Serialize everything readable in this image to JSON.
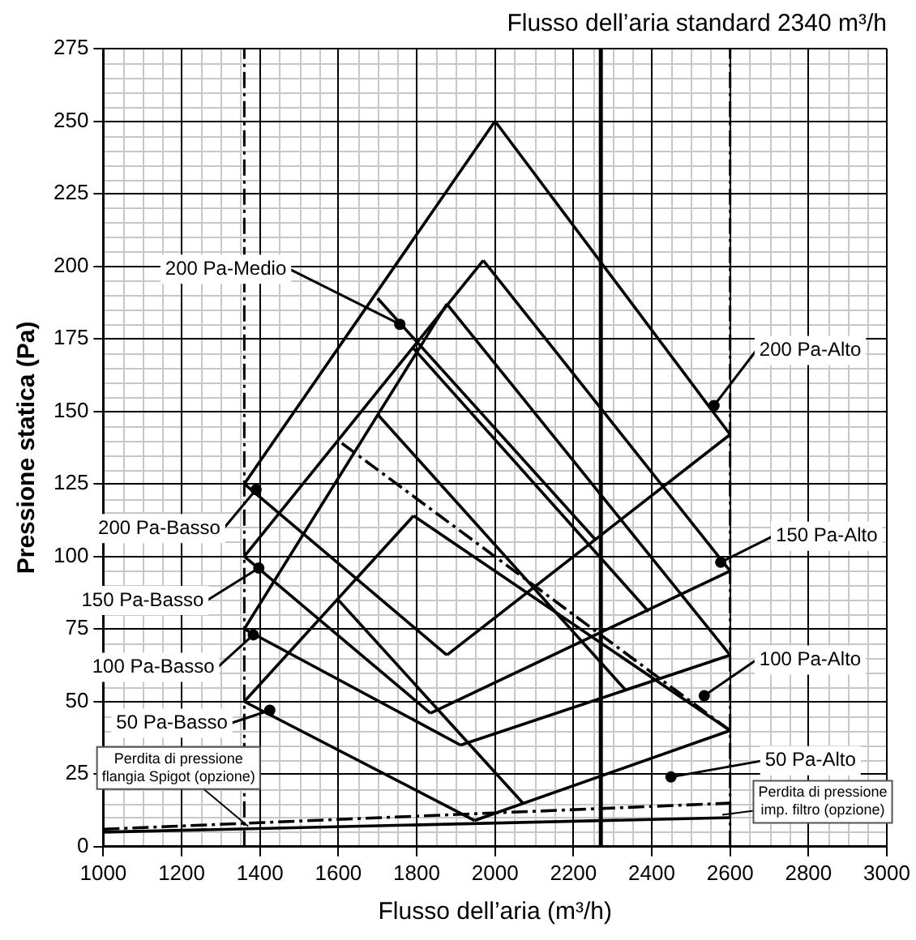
{
  "chart_data": {
    "type": "line",
    "title": "Flusso dell’aria standard 2340 m³/h",
    "xlabel": "Flusso dell’aria (m³/h)",
    "ylabel": "Pressione statica (Pa)",
    "xlim": [
      1000,
      3000
    ],
    "xticks": [
      1000,
      1200,
      1400,
      1600,
      1800,
      2000,
      2200,
      2400,
      2600,
      2800,
      3000
    ],
    "ylim": [
      0,
      275
    ],
    "yticks": [
      0,
      25,
      50,
      75,
      100,
      125,
      150,
      175,
      200,
      225,
      250,
      275
    ],
    "grid": true,
    "legend": false,
    "marker": "none",
    "series": [
      {
        "color": "#000000",
        "x": [
          1360,
          2000
        ],
        "values": [
          125,
          250
        ]
      },
      {
        "color": "#000000",
        "x": [
          2000,
          2600
        ],
        "values": [
          250,
          142
        ]
      },
      {
        "color": "#000000",
        "x": [
          1360,
          1877
        ],
        "values": [
          125,
          66
        ]
      },
      {
        "color": "#000000",
        "x": [
          1877,
          2600
        ],
        "values": [
          66,
          142
        ]
      },
      {
        "color": "#000000",
        "x": [
          1700,
          2255
        ],
        "values": [
          189,
          106
        ]
      },
      {
        "color": "#000000",
        "x": [
          1360,
          1970
        ],
        "values": [
          100,
          202
        ]
      },
      {
        "color": "#000000",
        "x": [
          1970,
          2600
        ],
        "values": [
          202,
          95
        ]
      },
      {
        "color": "#000000",
        "x": [
          1360,
          1835
        ],
        "values": [
          100,
          46
        ]
      },
      {
        "color": "#000000",
        "x": [
          1835,
          2600
        ],
        "values": [
          46,
          95
        ]
      },
      {
        "color": "#000000",
        "x": [
          1790,
          2392
        ],
        "values": [
          172,
          81
        ]
      },
      {
        "color": "#000000",
        "x": [
          1360,
          1877
        ],
        "values": [
          75,
          187
        ]
      },
      {
        "color": "#000000",
        "x": [
          1877,
          2600
        ],
        "values": [
          187,
          66
        ]
      },
      {
        "color": "#000000",
        "x": [
          1360,
          1912
        ],
        "values": [
          75,
          35
        ]
      },
      {
        "color": "#000000",
        "x": [
          1912,
          2600
        ],
        "values": [
          35,
          66
        ]
      },
      {
        "color": "#000000",
        "x": [
          1700,
          2333
        ],
        "values": [
          149,
          54
        ]
      },
      {
        "color": "#000000",
        "x": [
          1360,
          1792
        ],
        "values": [
          50,
          114
        ]
      },
      {
        "color": "#000000",
        "x": [
          1792,
          2600
        ],
        "values": [
          114,
          40
        ]
      },
      {
        "color": "#000000",
        "x": [
          1360,
          1948
        ],
        "values": [
          50,
          9
        ]
      },
      {
        "color": "#000000",
        "x": [
          1948,
          2600
        ],
        "values": [
          9,
          40
        ]
      },
      {
        "color": "#000000",
        "x": [
          1600,
          2071
        ],
        "values": [
          85,
          15
        ]
      },
      {
        "color": "#000000",
        "x": [
          1609,
          2600
        ],
        "values": [
          139,
          40
        ],
        "line_style": "dashed"
      },
      {
        "color": "#000000",
        "x": [
          1000,
          2600
        ],
        "values": [
          6,
          15
        ],
        "line_style": "dashed"
      },
      {
        "color": "#000000",
        "x": [
          1000,
          2600
        ],
        "values": [
          5,
          10
        ]
      }
    ],
    "ref_lines": [
      {
        "axis": "x",
        "value": 1360,
        "line_style": "dashed"
      },
      {
        "axis": "x",
        "value": 2600,
        "line_style": "dashed"
      },
      {
        "axis": "x",
        "value": 2270,
        "line_style": "solid"
      }
    ],
    "annotations": [
      {
        "text": "200 Pa-Basso",
        "x": 1390,
        "y": 123
      },
      {
        "text": "150 Pa-Basso",
        "x": 1397,
        "y": 96
      },
      {
        "text": "100 Pa-Basso",
        "x": 1383,
        "y": 73
      },
      {
        "text": "50 Pa-Basso",
        "x": 1425,
        "y": 47
      },
      {
        "text": "200 Pa-Medio",
        "x": 1757,
        "y": 180
      },
      {
        "text": "200 Pa-Alto",
        "x": 2559,
        "y": 152
      },
      {
        "text": "150 Pa-Alto",
        "x": 2576,
        "y": 98
      },
      {
        "text": "100 Pa-Alto",
        "x": 2534,
        "y": 52
      },
      {
        "text": "50 Pa-Alto",
        "x": 2449,
        "y": 24
      },
      {
        "text": "Perdita di pressione\nflangia Spigot (opzione)",
        "x": 1370,
        "y": 7
      },
      {
        "text": "Perdita di pressione\nimp. filtro (opzione)",
        "x": 2580,
        "y": 11
      }
    ]
  }
}
